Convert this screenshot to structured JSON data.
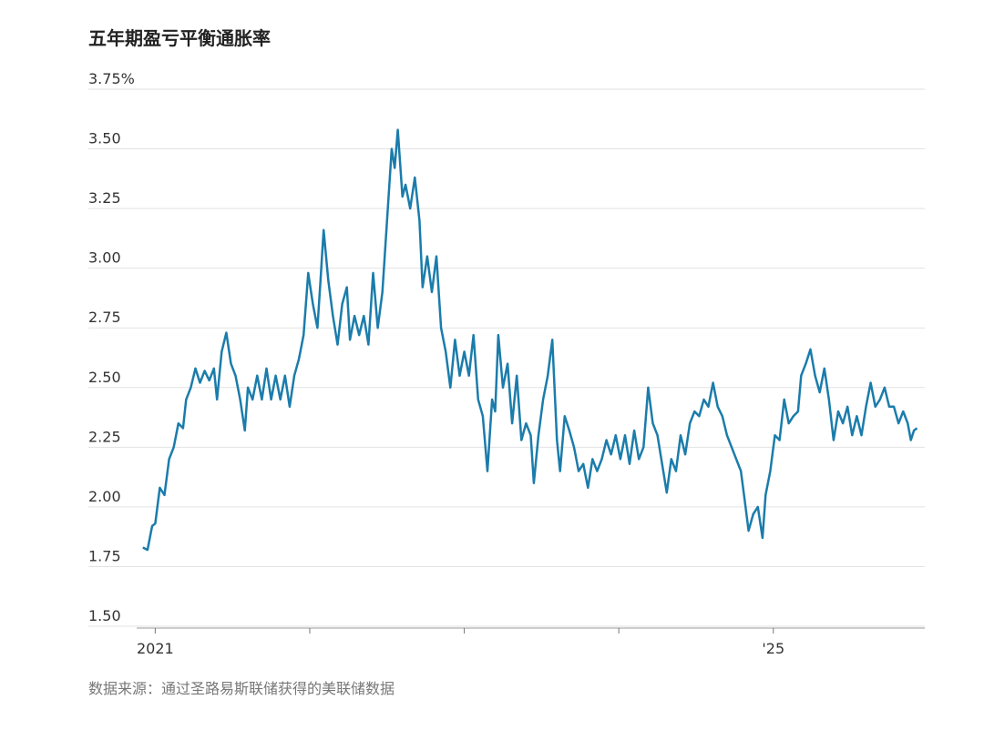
{
  "chart_data": {
    "type": "line",
    "title": "五年期盈亏平衡通胀率",
    "source": "数据来源：通过圣路易斯联储获得的美联储数据",
    "color": "#1b7cab",
    "xlim": [
      2020.88,
      2025.98
    ],
    "xticks": [
      2021,
      {
        "value": 2022,
        "label": null
      },
      {
        "value": 2023,
        "label": null
      },
      {
        "value": 2024,
        "label": null
      },
      {
        "value": 2025,
        "label": "'25"
      }
    ],
    "ylim": [
      1.5,
      3.75
    ],
    "yticks": [
      {
        "value": 1.5,
        "label": "1.50"
      },
      1.75,
      {
        "value": 2,
        "label": "2.00"
      },
      2.25,
      {
        "value": 2.5,
        "label": "2.50"
      },
      2.75,
      {
        "value": 3,
        "label": "3.00"
      },
      3.25,
      {
        "value": 3.5,
        "label": "3.50"
      },
      {
        "value": 3.75,
        "label": "3.75%"
      }
    ],
    "grid": true,
    "x": [
      2020.92,
      2020.95,
      2020.98,
      2021.0,
      2021.03,
      2021.06,
      2021.09,
      2021.12,
      2021.15,
      2021.18,
      2021.2,
      2021.23,
      2021.26,
      2021.29,
      2021.32,
      2021.35,
      2021.38,
      2021.4,
      2021.43,
      2021.46,
      2021.49,
      2021.52,
      2021.55,
      2021.58,
      2021.6,
      2021.63,
      2021.66,
      2021.69,
      2021.72,
      2021.75,
      2021.78,
      2021.81,
      2021.84,
      2021.87,
      2021.9,
      2021.93,
      2021.96,
      2021.99,
      2022.02,
      2022.05,
      2022.07,
      2022.09,
      2022.12,
      2022.15,
      2022.18,
      2022.21,
      2022.24,
      2022.26,
      2022.29,
      2022.32,
      2022.35,
      2022.38,
      2022.41,
      2022.44,
      2022.47,
      2022.5,
      2022.53,
      2022.55,
      2022.57,
      2022.6,
      2022.62,
      2022.65,
      2022.68,
      2022.71,
      2022.73,
      2022.76,
      2022.79,
      2022.82,
      2022.85,
      2022.88,
      2022.91,
      2022.94,
      2022.97,
      2023.0,
      2023.03,
      2023.06,
      2023.09,
      2023.12,
      2023.15,
      2023.18,
      2023.2,
      2023.22,
      2023.25,
      2023.28,
      2023.31,
      2023.34,
      2023.37,
      2023.4,
      2023.43,
      2023.45,
      2023.48,
      2023.51,
      2023.54,
      2023.57,
      2023.6,
      2023.62,
      2023.65,
      2023.68,
      2023.71,
      2023.74,
      2023.77,
      2023.8,
      2023.83,
      2023.86,
      2023.89,
      2023.92,
      2023.95,
      2023.98,
      2024.01,
      2024.04,
      2024.07,
      2024.1,
      2024.13,
      2024.16,
      2024.19,
      2024.22,
      2024.25,
      2024.28,
      2024.31,
      2024.34,
      2024.37,
      2024.4,
      2024.43,
      2024.46,
      2024.49,
      2024.52,
      2024.55,
      2024.58,
      2024.61,
      2024.64,
      2024.67,
      2024.7,
      2024.73,
      2024.76,
      2024.79,
      2024.82,
      2024.84,
      2024.87,
      2024.9,
      2024.93,
      2024.95,
      2024.98,
      2025.01,
      2025.04,
      2025.07,
      2025.1,
      2025.13,
      2025.16,
      2025.18,
      2025.21,
      2025.24,
      2025.27,
      2025.3,
      2025.33,
      2025.36,
      2025.39,
      2025.42,
      2025.45,
      2025.48,
      2025.51,
      2025.54,
      2025.57,
      2025.6,
      2025.63,
      2025.66,
      2025.69,
      2025.72,
      2025.75,
      2025.78,
      2025.81,
      2025.84,
      2025.87,
      2025.89,
      2025.91,
      2025.93
    ],
    "values": [
      1.83,
      1.82,
      1.92,
      1.93,
      2.08,
      2.05,
      2.2,
      2.25,
      2.35,
      2.33,
      2.45,
      2.5,
      2.58,
      2.52,
      2.57,
      2.53,
      2.58,
      2.45,
      2.65,
      2.73,
      2.6,
      2.55,
      2.45,
      2.32,
      2.5,
      2.45,
      2.55,
      2.45,
      2.58,
      2.45,
      2.55,
      2.45,
      2.55,
      2.42,
      2.55,
      2.62,
      2.72,
      2.98,
      2.85,
      2.75,
      2.95,
      3.16,
      2.95,
      2.8,
      2.68,
      2.85,
      2.92,
      2.7,
      2.8,
      2.72,
      2.8,
      2.68,
      2.98,
      2.75,
      2.9,
      3.2,
      3.5,
      3.42,
      3.58,
      3.3,
      3.35,
      3.25,
      3.38,
      3.2,
      2.92,
      3.05,
      2.9,
      3.05,
      2.75,
      2.65,
      2.5,
      2.7,
      2.55,
      2.65,
      2.55,
      2.72,
      2.45,
      2.38,
      2.15,
      2.45,
      2.4,
      2.72,
      2.5,
      2.6,
      2.35,
      2.55,
      2.28,
      2.35,
      2.3,
      2.1,
      2.3,
      2.45,
      2.55,
      2.7,
      2.28,
      2.15,
      2.38,
      2.32,
      2.25,
      2.15,
      2.18,
      2.08,
      2.2,
      2.15,
      2.2,
      2.28,
      2.22,
      2.3,
      2.2,
      2.3,
      2.18,
      2.32,
      2.2,
      2.25,
      2.5,
      2.35,
      2.3,
      2.18,
      2.06,
      2.2,
      2.15,
      2.3,
      2.22,
      2.35,
      2.4,
      2.38,
      2.45,
      2.42,
      2.52,
      2.42,
      2.38,
      2.3,
      2.25,
      2.2,
      2.15,
      2.0,
      1.9,
      1.97,
      2.0,
      1.87,
      2.05,
      2.15,
      2.3,
      2.28,
      2.45,
      2.35,
      2.38,
      2.4,
      2.55,
      2.6,
      2.66,
      2.55,
      2.48,
      2.58,
      2.45,
      2.28,
      2.4,
      2.35,
      2.42,
      2.3,
      2.38,
      2.3,
      2.42,
      2.52,
      2.42,
      2.45,
      2.5,
      2.42,
      2.42,
      2.35,
      2.4,
      2.35,
      2.28,
      2.32,
      2.33
    ]
  }
}
